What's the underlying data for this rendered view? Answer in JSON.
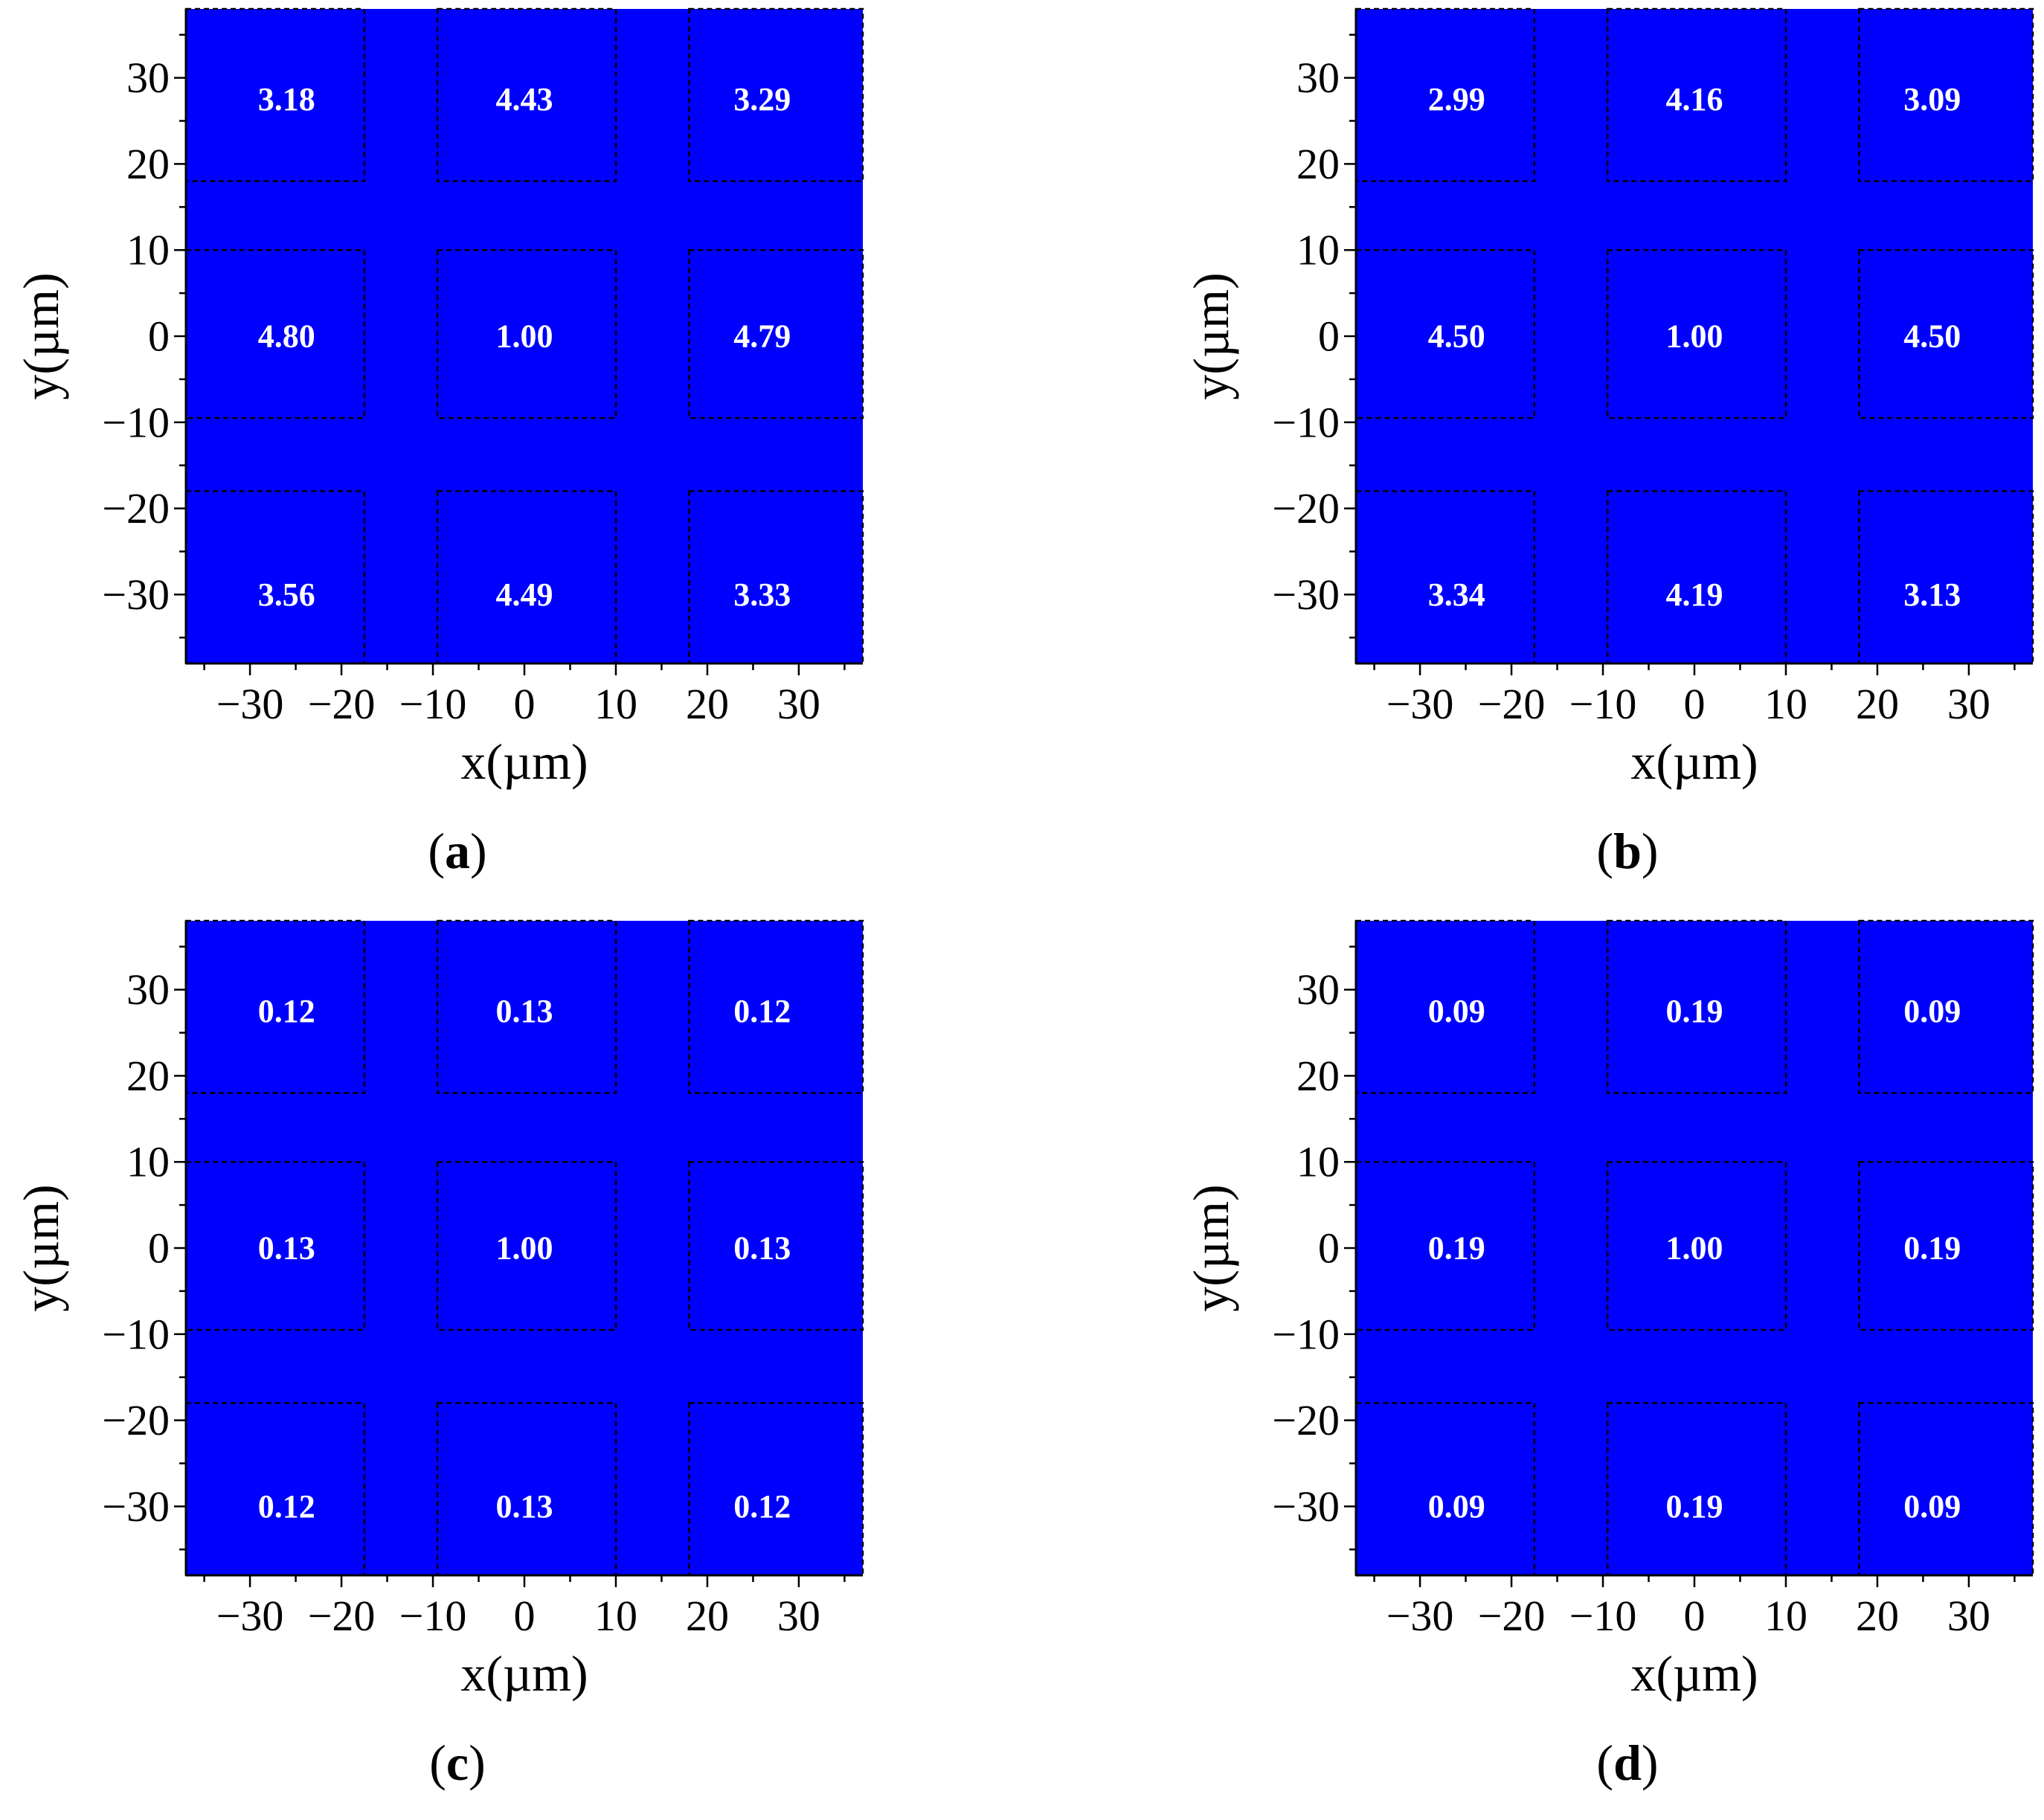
{
  "chart_data": [
    {
      "type": "heatmap",
      "caption_letter": "a",
      "xlabel": "x(µm)",
      "ylabel": "y(µm)",
      "xlim": [
        -37,
        37
      ],
      "ylim": [
        -38,
        38
      ],
      "xticks": [
        -30,
        -20,
        -10,
        0,
        10,
        20,
        30
      ],
      "yticks": [
        30,
        20,
        10,
        0,
        -10,
        -20,
        -30
      ],
      "tick_labels_x": [
        "−30",
        "−20",
        "−10",
        "0",
        "10",
        "20",
        "30"
      ],
      "tick_labels_y": [
        "30",
        "20",
        "10",
        "0",
        "−10",
        "−20",
        "−30"
      ],
      "background_color": "#0000ff",
      "label_color": "#ffffff",
      "grid_values": [
        [
          "3.18",
          "4.43",
          "3.29"
        ],
        [
          "4.80",
          "1.00",
          "4.79"
        ],
        [
          "3.56",
          "4.49",
          "3.33"
        ]
      ]
    },
    {
      "type": "heatmap",
      "caption_letter": "b",
      "xlabel": "x(µm)",
      "ylabel": "y(µm)",
      "xlim": [
        -37,
        37
      ],
      "ylim": [
        -38,
        38
      ],
      "xticks": [
        -30,
        -20,
        -10,
        0,
        10,
        20,
        30
      ],
      "yticks": [
        30,
        20,
        10,
        0,
        -10,
        -20,
        -30
      ],
      "tick_labels_x": [
        "−30",
        "−20",
        "−10",
        "0",
        "10",
        "20",
        "30"
      ],
      "tick_labels_y": [
        "30",
        "20",
        "10",
        "0",
        "−10",
        "−20",
        "−30"
      ],
      "background_color": "#0000ff",
      "label_color": "#ffffff",
      "grid_values": [
        [
          "2.99",
          "4.16",
          "3.09"
        ],
        [
          "4.50",
          "1.00",
          "4.50"
        ],
        [
          "3.34",
          "4.19",
          "3.13"
        ]
      ]
    },
    {
      "type": "heatmap",
      "caption_letter": "c",
      "xlabel": "x(µm)",
      "ylabel": "y(µm)",
      "xlim": [
        -37,
        37
      ],
      "ylim": [
        -38,
        38
      ],
      "xticks": [
        -30,
        -20,
        -10,
        0,
        10,
        20,
        30
      ],
      "yticks": [
        30,
        20,
        10,
        0,
        -10,
        -20,
        -30
      ],
      "tick_labels_x": [
        "−30",
        "−20",
        "−10",
        "0",
        "10",
        "20",
        "30"
      ],
      "tick_labels_y": [
        "30",
        "20",
        "10",
        "0",
        "−10",
        "−20",
        "−30"
      ],
      "background_color": "#0000ff",
      "label_color": "#ffffff",
      "grid_values": [
        [
          "0.12",
          "0.13",
          "0.12"
        ],
        [
          "0.13",
          "1.00",
          "0.13"
        ],
        [
          "0.12",
          "0.13",
          "0.12"
        ]
      ]
    },
    {
      "type": "heatmap",
      "caption_letter": "d",
      "xlabel": "x(µm)",
      "ylabel": "y(µm)",
      "xlim": [
        -37,
        37
      ],
      "ylim": [
        -38,
        38
      ],
      "xticks": [
        -30,
        -20,
        -10,
        0,
        10,
        20,
        30
      ],
      "yticks": [
        30,
        20,
        10,
        0,
        -10,
        -20,
        -30
      ],
      "tick_labels_x": [
        "−30",
        "−20",
        "−10",
        "0",
        "10",
        "20",
        "30"
      ],
      "tick_labels_y": [
        "30",
        "20",
        "10",
        "0",
        "−10",
        "−20",
        "−30"
      ],
      "background_color": "#0000ff",
      "label_color": "#ffffff",
      "grid_values": [
        [
          "0.09",
          "0.19",
          "0.09"
        ],
        [
          "0.19",
          "1.00",
          "0.19"
        ],
        [
          "0.09",
          "0.19",
          "0.09"
        ]
      ]
    }
  ]
}
